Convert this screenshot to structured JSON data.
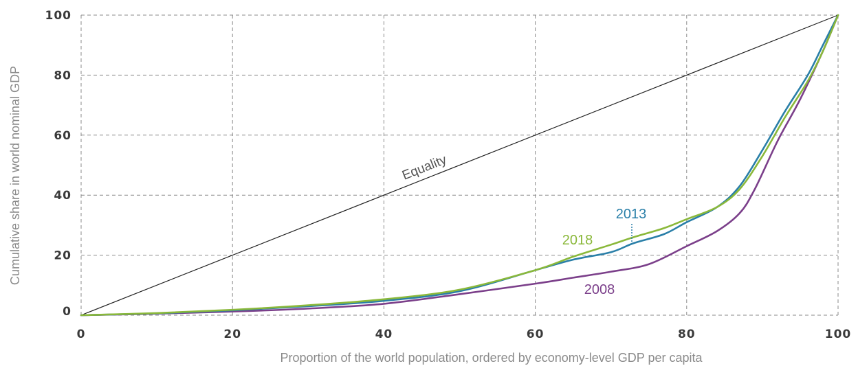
{
  "chart_data": {
    "type": "line",
    "xlabel": "Proportion of the world population, ordered by economy-level GDP per capita",
    "ylabel": "Cumulative share in world nominal GDP",
    "xlim": [
      0,
      100
    ],
    "ylim": [
      0,
      100
    ],
    "x_ticks": [
      "0",
      "20",
      "40",
      "60",
      "80",
      "100"
    ],
    "y_ticks": [
      "0",
      "20",
      "40",
      "60",
      "80",
      "100"
    ],
    "grid": true,
    "equality": {
      "label": "Equality",
      "points": [
        [
          0,
          0
        ],
        [
          100,
          100
        ]
      ],
      "color": "#222222"
    },
    "series": [
      {
        "name": "2008",
        "color": "#7b3f8a",
        "points": [
          [
            0,
            0
          ],
          [
            10,
            0.5
          ],
          [
            20,
            1.2
          ],
          [
            30,
            2.2
          ],
          [
            40,
            3.8
          ],
          [
            50,
            7
          ],
          [
            60,
            10.5
          ],
          [
            65,
            12.5
          ],
          [
            70,
            14.5
          ],
          [
            75,
            17
          ],
          [
            80,
            23
          ],
          [
            84,
            28
          ],
          [
            87,
            34
          ],
          [
            89,
            42
          ],
          [
            92,
            58
          ],
          [
            95,
            72
          ],
          [
            98,
            88
          ],
          [
            100,
            100
          ]
        ]
      },
      {
        "name": "2013",
        "color": "#2a7fa8",
        "points": [
          [
            0,
            0
          ],
          [
            10,
            0.6
          ],
          [
            20,
            1.6
          ],
          [
            30,
            3
          ],
          [
            40,
            4.8
          ],
          [
            50,
            8
          ],
          [
            60,
            15
          ],
          [
            65,
            18.5
          ],
          [
            70,
            21
          ],
          [
            73,
            24
          ],
          [
            77,
            27
          ],
          [
            80,
            31
          ],
          [
            84,
            36
          ],
          [
            87,
            43
          ],
          [
            90,
            55
          ],
          [
            93,
            68
          ],
          [
            96,
            80
          ],
          [
            98,
            90
          ],
          [
            100,
            100
          ]
        ]
      },
      {
        "name": "2018",
        "color": "#8ab83a",
        "points": [
          [
            0,
            0
          ],
          [
            10,
            0.7
          ],
          [
            20,
            1.8
          ],
          [
            30,
            3.3
          ],
          [
            40,
            5.3
          ],
          [
            50,
            8.5
          ],
          [
            60,
            15
          ],
          [
            65,
            19.5
          ],
          [
            70,
            23.5
          ],
          [
            73,
            26
          ],
          [
            77,
            29
          ],
          [
            80,
            32
          ],
          [
            84,
            36
          ],
          [
            87,
            42
          ],
          [
            90,
            53
          ],
          [
            93,
            66
          ],
          [
            96,
            78
          ],
          [
            98,
            88
          ],
          [
            100,
            100
          ]
        ]
      }
    ],
    "annotations": [
      {
        "text": "2013",
        "series": "2013"
      },
      {
        "text": "2018",
        "series": "2018"
      },
      {
        "text": "2008",
        "series": "2008"
      },
      {
        "text": "Equality",
        "series": "equality"
      }
    ]
  }
}
